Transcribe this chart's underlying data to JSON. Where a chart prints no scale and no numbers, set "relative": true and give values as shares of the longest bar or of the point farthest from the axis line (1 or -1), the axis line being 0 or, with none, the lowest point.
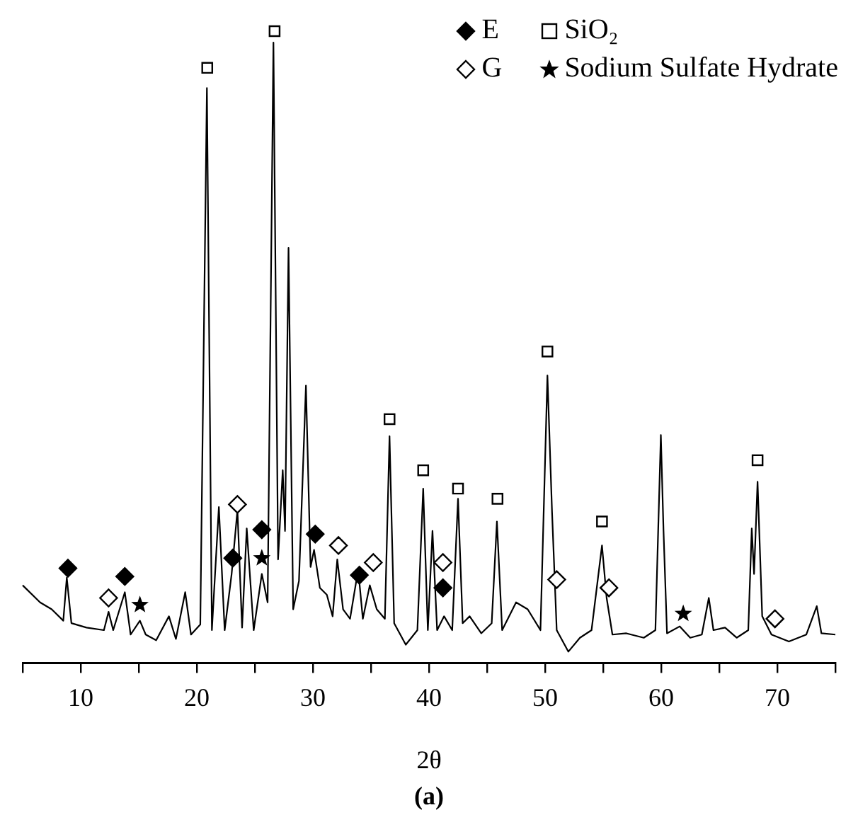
{
  "chart_data": {
    "type": "line",
    "relative": true,
    "title": "(a)",
    "xlabel": "2θ",
    "xlim": [
      5,
      75
    ],
    "xticks": [
      {
        "value": 5,
        "label": null
      },
      10,
      {
        "value": 15,
        "label": null
      },
      20,
      {
        "value": 25,
        "label": null
      },
      30,
      {
        "value": 35,
        "label": null
      },
      40,
      {
        "value": 45,
        "label": null
      },
      50,
      {
        "value": 55,
        "label": null
      },
      60,
      {
        "value": 65,
        "label": null
      },
      70,
      {
        "value": 75,
        "label": null
      }
    ],
    "grid": false,
    "legend": "top right",
    "line_style": "solid",
    "marker": "none",
    "series": [
      {
        "color": "#000000",
        "x": [
          5,
          6.5,
          7.5,
          8.5,
          8.8,
          9.2,
          10.5,
          12,
          12.4,
          12.8,
          13.8,
          14.3,
          15.1,
          15.6,
          16.5,
          17.6,
          18.2,
          19.0,
          19.5,
          20.3,
          20.87,
          21.3,
          21.9,
          22.4,
          23.0,
          23.5,
          23.9,
          24.3,
          24.9,
          25.6,
          26.1,
          26.6,
          27.0,
          27.4,
          27.6,
          27.9,
          28.3,
          28.8,
          29.4,
          29.8,
          30.1,
          30.6,
          31.2,
          31.7,
          32.1,
          32.6,
          33.2,
          33.9,
          34.3,
          34.9,
          35.5,
          36.2,
          36.6,
          37.0,
          38.0,
          39.0,
          39.5,
          39.9,
          40.3,
          40.7,
          41.3,
          42.0,
          42.5,
          42.9,
          43.5,
          44.5,
          45.4,
          45.85,
          46.3,
          47.5,
          48.5,
          49.6,
          50.2,
          50.6,
          51.0,
          52.0,
          53.0,
          54.0,
          54.9,
          55.3,
          55.8,
          57.0,
          58.5,
          59.5,
          59.97,
          60.2,
          60.5,
          61.6,
          62.5,
          63.5,
          64.1,
          64.5,
          65.5,
          66.5,
          67.5,
          67.8,
          68.0,
          68.3,
          68.7,
          69.5,
          71.0,
          72.5,
          73.4,
          73.8,
          75.0
        ],
        "values": [
          0.123,
          0.096,
          0.085,
          0.067,
          0.135,
          0.063,
          0.056,
          0.052,
          0.081,
          0.052,
          0.112,
          0.045,
          0.067,
          0.045,
          0.036,
          0.074,
          0.038,
          0.112,
          0.045,
          0.061,
          0.91,
          0.052,
          0.247,
          0.052,
          0.141,
          0.242,
          0.056,
          0.213,
          0.052,
          0.141,
          0.096,
          0.982,
          0.164,
          0.305,
          0.209,
          0.657,
          0.085,
          0.13,
          0.439,
          0.152,
          0.179,
          0.119,
          0.108,
          0.074,
          0.164,
          0.085,
          0.07,
          0.148,
          0.07,
          0.123,
          0.085,
          0.07,
          0.359,
          0.063,
          0.029,
          0.052,
          0.276,
          0.052,
          0.209,
          0.052,
          0.074,
          0.052,
          0.26,
          0.063,
          0.074,
          0.047,
          0.063,
          0.224,
          0.052,
          0.096,
          0.085,
          0.052,
          0.455,
          0.238,
          0.052,
          0.018,
          0.04,
          0.052,
          0.186,
          0.103,
          0.045,
          0.047,
          0.04,
          0.052,
          0.361,
          0.209,
          0.047,
          0.058,
          0.04,
          0.045,
          0.103,
          0.052,
          0.056,
          0.04,
          0.052,
          0.213,
          0.141,
          0.287,
          0.074,
          0.045,
          0.034,
          0.045,
          0.09,
          0.047,
          0.045
        ]
      },
      {
        "name": "E",
        "type": "scatter",
        "marker": "diamond",
        "color": "#000000",
        "x": [
          8.9,
          13.8,
          23.1,
          25.6,
          30.2,
          34.0,
          41.2
        ],
        "values": [
          0.15,
          0.137,
          0.166,
          0.211,
          0.204,
          0.139,
          0.119
        ]
      },
      {
        "name": "SiO₂",
        "type": "scatter",
        "marker": "square",
        "color": "#ffffff",
        "x": [
          20.9,
          26.7,
          36.6,
          39.5,
          42.5,
          45.9,
          50.2,
          54.9,
          68.3
        ],
        "values": [
          0.942,
          1.0,
          0.386,
          0.305,
          0.276,
          0.26,
          0.493,
          0.224,
          0.321
        ]
      },
      {
        "name": "G",
        "type": "scatter",
        "marker": "diamond",
        "color": "#ffffff",
        "x": [
          12.4,
          23.5,
          32.2,
          35.2,
          41.2,
          51.0,
          55.5,
          69.8
        ],
        "values": [
          0.103,
          0.251,
          0.186,
          0.159,
          0.159,
          0.132,
          0.119,
          0.07
        ]
      },
      {
        "name": "Sodium Sulfate Hydrate",
        "type": "scatter",
        "marker": "star",
        "color": "#000000",
        "x": [
          15.1,
          25.6,
          61.9
        ],
        "values": [
          0.092,
          0.166,
          0.078
        ]
      }
    ]
  }
}
